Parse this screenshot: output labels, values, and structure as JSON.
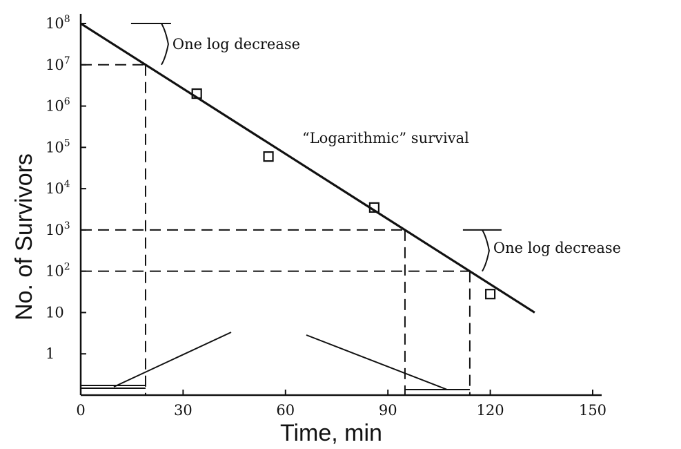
{
  "chart_data": {
    "type": "scatter",
    "title": "",
    "xlabel": "Time, min",
    "ylabel": "No. of Survivors",
    "log_y": true,
    "xlim": [
      0,
      150
    ],
    "ylim_log10": [
      -1,
      8
    ],
    "x_ticks": [
      {
        "value": 0,
        "label": "0"
      },
      {
        "value": 30,
        "label": "30"
      },
      {
        "value": 60,
        "label": "60"
      },
      {
        "value": 90,
        "label": "90"
      },
      {
        "value": 120,
        "label": "120"
      },
      {
        "value": 150,
        "label": "150"
      }
    ],
    "y_ticks": [
      {
        "log": 8,
        "base": "10",
        "exp": "8"
      },
      {
        "log": 7,
        "base": "10",
        "exp": "7"
      },
      {
        "log": 6,
        "base": "10",
        "exp": "6"
      },
      {
        "log": 5,
        "base": "10",
        "exp": "5"
      },
      {
        "log": 4,
        "base": "10",
        "exp": "4"
      },
      {
        "log": 3,
        "base": "10",
        "exp": "3"
      },
      {
        "log": 2,
        "base": "10",
        "exp": "2"
      },
      {
        "log": 1,
        "base": "10",
        "exp": ""
      },
      {
        "log": 0,
        "base": "1",
        "exp": ""
      }
    ],
    "points": [
      {
        "x": 34,
        "y": 2000000
      },
      {
        "x": 55,
        "y": 60000
      },
      {
        "x": 86,
        "y": 3500
      },
      {
        "x": 120,
        "y": 28
      }
    ],
    "fit_line": {
      "x": [
        0,
        133
      ],
      "y": [
        100000000,
        10
      ]
    },
    "reference_lines": [
      {
        "x": 19,
        "y": 10000000
      },
      {
        "x": 95,
        "y": 1000
      },
      {
        "x": 114,
        "y": 100
      }
    ],
    "annotations": [
      {
        "id": "upper",
        "text": "One log decrease",
        "x": 20,
        "y": 31622776
      },
      {
        "id": "middle",
        "text": "“Logarithmic” survival",
        "x": 65,
        "y": 120000
      },
      {
        "id": "lower",
        "text": "One log decrease",
        "x": 124,
        "y": 316227
      }
    ],
    "grid": false,
    "legend": "none"
  }
}
